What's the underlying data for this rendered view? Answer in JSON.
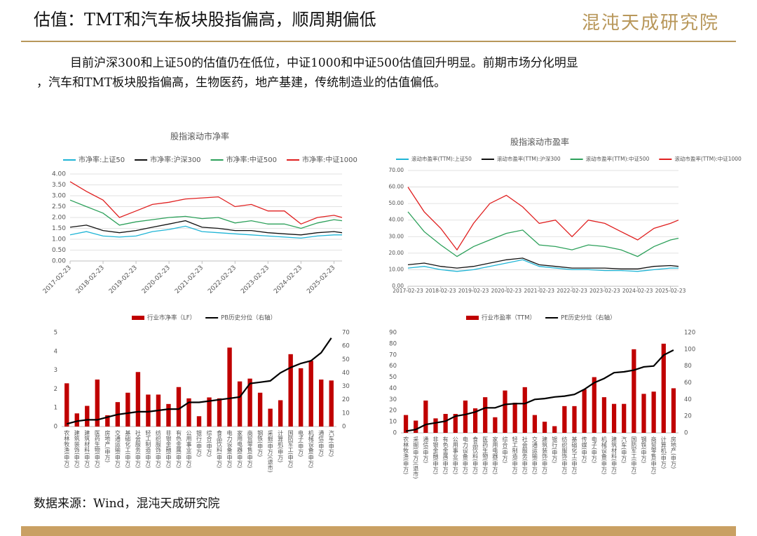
{
  "header": {
    "title": "估值：TMT和汽车板块股指偏高，顺周期偏低",
    "logo": "混沌天成研究院"
  },
  "body": {
    "paragraph": [
      "目前沪深300和上证50的估值仍在低位，中证1000和中证500估值回升明显。前期市场分化明显",
      "，汽车和TMT板块股指偏高，生物医药，地产基建，传统制造业的估值偏低。"
    ]
  },
  "footer": {
    "source": "数据来源：Wind，混沌天成研究院"
  },
  "chart_data": [
    {
      "type": "line",
      "title": "股指滚动市净率",
      "grid": true,
      "x": [
        "2017-02-23",
        "2017-08-23",
        "2018-02-23",
        "2018-08-23",
        "2019-02-23",
        "2019-08-23",
        "2020-02-23",
        "2020-08-23",
        "2021-02-23",
        "2021-08-23",
        "2022-02-23",
        "2022-08-23",
        "2023-02-23",
        "2023-08-23",
        "2024-02-23",
        "2024-08-23",
        "2025-02-23",
        "2025-05-23"
      ],
      "xlim": [
        "2017-02-23",
        "2025-05-23"
      ],
      "xticks": [
        "2017-02-23",
        "2018-02-23",
        "2019-02-23",
        "2020-02-23",
        "2021-02-23",
        "2022-02-23",
        "2023-02-23",
        "2024-02-23",
        "2025-02-23"
      ],
      "ylim": [
        0,
        4
      ],
      "yticks": [
        {
          "value": 0,
          "label": "0.00"
        },
        {
          "value": 0.5,
          "label": "0.50"
        },
        {
          "value": 1,
          "label": "1.00"
        },
        {
          "value": 1.5,
          "label": "1.50"
        },
        {
          "value": 2,
          "label": "2.00"
        },
        {
          "value": 2.5,
          "label": "2.50"
        },
        {
          "value": 3,
          "label": "3.00"
        },
        {
          "value": 3.5,
          "label": "3.50"
        },
        {
          "value": 4,
          "label": "4.00"
        }
      ],
      "series": [
        {
          "name": "市净率:上证50",
          "color": "#1fb5d6",
          "values": [
            1.2,
            1.35,
            1.15,
            1.1,
            1.15,
            1.35,
            1.45,
            1.6,
            1.35,
            1.3,
            1.25,
            1.2,
            1.15,
            1.1,
            1.05,
            1.15,
            1.2,
            1.2
          ]
        },
        {
          "name": "市净率:沪深300",
          "color": "#111111",
          "values": [
            1.55,
            1.65,
            1.4,
            1.3,
            1.4,
            1.55,
            1.7,
            1.85,
            1.55,
            1.5,
            1.4,
            1.4,
            1.3,
            1.25,
            1.2,
            1.3,
            1.35,
            1.3
          ]
        },
        {
          "name": "市净率:中证500",
          "color": "#2ca05a",
          "values": [
            2.8,
            2.5,
            2.2,
            1.65,
            1.8,
            1.9,
            2.0,
            2.05,
            1.95,
            2.0,
            1.75,
            1.85,
            1.7,
            1.7,
            1.5,
            1.75,
            1.9,
            1.85
          ]
        },
        {
          "name": "市净率:中证1000",
          "color": "#e02020",
          "values": [
            3.65,
            3.2,
            2.8,
            2.0,
            2.3,
            2.6,
            2.7,
            2.85,
            2.9,
            2.95,
            2.5,
            2.6,
            2.3,
            2.3,
            1.7,
            2.0,
            2.1,
            2.0
          ]
        }
      ]
    },
    {
      "type": "line",
      "title": "股指滚动市盈率",
      "grid": true,
      "x": [
        "2017-02-23",
        "2017-08-23",
        "2018-02-23",
        "2018-08-23",
        "2019-02-23",
        "2019-08-23",
        "2020-02-23",
        "2020-08-23",
        "2021-02-23",
        "2021-08-23",
        "2022-02-23",
        "2022-08-23",
        "2023-02-23",
        "2023-08-23",
        "2024-02-23",
        "2024-08-23",
        "2025-02-23",
        "2025-05-23"
      ],
      "xlim": [
        "2017-02-23",
        "2025-05-23"
      ],
      "xticks": [
        "2017-02-23",
        "2018-02-23",
        "2019-02-23",
        "2020-02-23",
        "2021-02-23",
        "2022-02-23",
        "2023-02-23",
        "2024-02-23",
        "2025-02-23"
      ],
      "ylim": [
        0,
        70
      ],
      "yticks": [
        {
          "value": 0,
          "label": "0.00"
        },
        {
          "value": 10,
          "label": "10.00"
        },
        {
          "value": 20,
          "label": "20.00"
        },
        {
          "value": 30,
          "label": "30.00"
        },
        {
          "value": 40,
          "label": "40.00"
        },
        {
          "value": 50,
          "label": "50.00"
        },
        {
          "value": 60,
          "label": "60.00"
        },
        {
          "value": 70,
          "label": "70.00"
        }
      ],
      "series": [
        {
          "name": "滚动市盈率(TTM):上证50",
          "color": "#1fb5d6",
          "values": [
            11,
            12,
            10,
            9,
            10,
            12,
            14,
            16,
            12,
            11,
            10,
            10,
            9.5,
            9.5,
            9,
            10,
            11,
            11
          ]
        },
        {
          "name": "滚动市盈率(TTM):沪深300",
          "color": "#111111",
          "values": [
            13,
            14,
            12,
            11,
            12,
            14,
            16,
            17,
            13,
            12,
            11,
            11,
            11,
            10.5,
            10.5,
            12,
            12.5,
            12
          ]
        },
        {
          "name": "滚动市盈率(TTM):中证500",
          "color": "#2ca05a",
          "values": [
            45,
            33,
            25,
            18,
            24,
            28,
            32,
            34,
            25,
            24,
            22,
            25,
            24,
            22,
            18,
            24,
            28,
            29
          ]
        },
        {
          "name": "滚动市盈率(TTM):中证1000",
          "color": "#e02020",
          "values": [
            60,
            45,
            35,
            22,
            38,
            50,
            55,
            48,
            38,
            40,
            30,
            40,
            38,
            33,
            28,
            35,
            38,
            40
          ]
        }
      ]
    },
    {
      "type": "bar",
      "categories": [
        "农林牧渔(申万)",
        "建筑装饰(申万)",
        "建筑材料(申万)",
        "医药生物(申万)",
        "房地产(申万)",
        "交通运输(申万)",
        "基础化工(申万)",
        "社会服务(申万)",
        "轻工制造(申万)",
        "纺织服饰(申万)",
        "非银金融(申万)",
        "有色金属(申万)",
        "公用事业(申万)",
        "银行(申万)",
        "综合(申万)",
        "食品饮料(申万)",
        "电力设备(申万)",
        "家用电器(申万)",
        "商贸零售(申万)",
        "钢铁(申万)",
        "采掘(申万)(退市)",
        "计算机(申万)",
        "国防军工(申万)",
        "电子(申万)",
        "机械设备(申万)",
        "通信(申万)",
        "汽车(申万)"
      ],
      "ylim": [
        0,
        5
      ],
      "yticks": [
        0,
        1,
        2,
        3,
        4,
        5
      ],
      "y2lim": [
        0,
        70
      ],
      "y2ticks": [
        0,
        10,
        20,
        30,
        40,
        50,
        60,
        70
      ],
      "series": [
        {
          "name": "行业市净率（LF）",
          "type": "bar",
          "color": "#c00000",
          "values": [
            2.3,
            0.7,
            1.1,
            2.5,
            0.6,
            1.3,
            1.8,
            2.9,
            1.7,
            1.7,
            1.2,
            2.1,
            1.5,
            0.55,
            1.55,
            1.5,
            4.2,
            2.4,
            2.55,
            1.8,
            0.95,
            1.4,
            3.85,
            3.1,
            3.5,
            2.5,
            2.45
          ]
        },
        {
          "name": "PB历史分位（右轴）",
          "type": "line",
          "axis": "y2",
          "color": "#000000",
          "values": [
            2,
            4,
            5,
            5,
            7,
            9,
            10,
            11,
            11,
            12,
            13,
            13,
            18,
            18,
            19,
            20,
            21,
            22,
            32,
            33,
            34,
            40,
            44,
            47,
            49,
            55,
            66
          ]
        }
      ]
    },
    {
      "type": "bar",
      "categories": [
        "农林牧渔(申万)",
        "采掘(申万)(退市)",
        "通信(申万)",
        "非银金融(申万)",
        "有色金属(申万)",
        "公用事业(申万)",
        "电力设备(申万)",
        "食品饮料(申万)",
        "医药生物(申万)",
        "家用电器(申万)",
        "综合(申万)",
        "轻工制造(申万)",
        "社会服务(申万)",
        "交通运输(申万)",
        "建筑装饰(申万)",
        "银行(申万)",
        "纺织服饰(申万)",
        "基础化工(申万)",
        "传媒(申万)",
        "电子(申万)",
        "机械设备(申万)",
        "建筑材料(申万)",
        "汽车(申万)",
        "国防军工(申万)",
        "钢铁(申万)",
        "商贸零售(申万)",
        "计算机(申万)",
        "房地产(申万)"
      ],
      "ylim": [
        0,
        90
      ],
      "yticks": [
        0,
        10,
        20,
        30,
        40,
        50,
        60,
        70,
        80,
        90
      ],
      "y2lim": [
        0,
        120
      ],
      "y2ticks": [
        0,
        20,
        40,
        60,
        80,
        100,
        120
      ],
      "series": [
        {
          "name": "行业市盈率（TTM）",
          "type": "bar",
          "color": "#c00000",
          "values": [
            16,
            11,
            29,
            13,
            17,
            17,
            29,
            22,
            32,
            14,
            38,
            27,
            41,
            16,
            10,
            6,
            24,
            24,
            39,
            50,
            32,
            26,
            26,
            75,
            35,
            37,
            80,
            40
          ]
        },
        {
          "name": "PE历史分位（右轴）",
          "type": "line",
          "axis": "y2",
          "color": "#000000",
          "values": [
            2,
            4,
            10,
            12,
            14,
            20,
            22,
            25,
            30,
            30,
            34,
            35,
            35,
            40,
            41,
            43,
            44,
            46,
            52,
            60,
            65,
            72,
            73,
            75,
            79,
            80,
            93,
            99
          ]
        }
      ]
    }
  ]
}
